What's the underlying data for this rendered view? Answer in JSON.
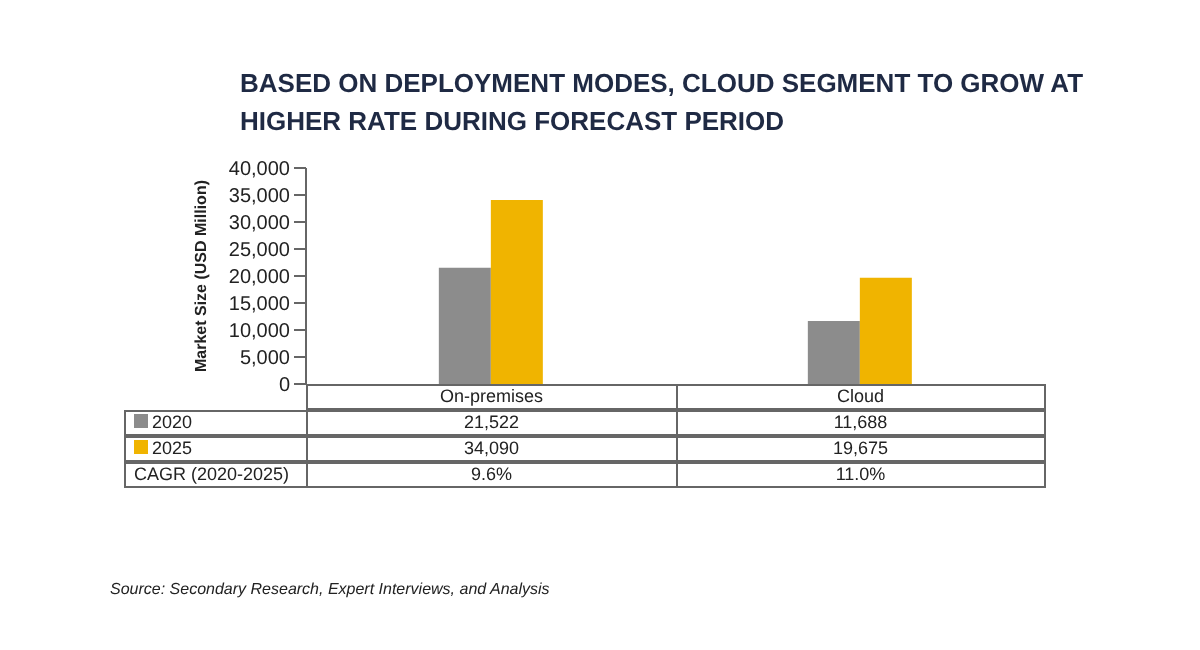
{
  "chart_data": {
    "type": "bar",
    "title": "BASED ON DEPLOYMENT MODES, CLOUD SEGMENT TO GROW AT HIGHER RATE DURING FORECAST PERIOD",
    "ylabel": "Market Size (USD Million)",
    "categories": [
      "On-premises",
      "Cloud"
    ],
    "series": [
      {
        "name": "2020",
        "color": "#8c8c8c",
        "values": [
          21522,
          11688
        ],
        "value_labels": [
          "21,522",
          "11,688"
        ]
      },
      {
        "name": "2025",
        "color": "#f0b400",
        "values": [
          34090,
          19675
        ],
        "value_labels": [
          "34,090",
          "19,675"
        ]
      }
    ],
    "ylim": [
      0,
      40000
    ],
    "yticks": [
      0,
      {
        "value": 5000,
        "label": "5,000"
      },
      {
        "value": 10000,
        "label": "10,000"
      },
      {
        "value": 15000,
        "label": "15,000"
      },
      {
        "value": 20000,
        "label": "20,000"
      },
      {
        "value": 25000,
        "label": "25,000"
      },
      {
        "value": 30000,
        "label": "30,000"
      },
      {
        "value": 35000,
        "label": "35,000"
      },
      {
        "value": 40000,
        "label": "40,000"
      }
    ],
    "legend": "bottom",
    "annotations": [
      "CAGR (2020-2025)",
      "9.6%",
      "11.0%",
      "Source: Secondary Research, Expert Interviews, and Analysis"
    ]
  }
}
